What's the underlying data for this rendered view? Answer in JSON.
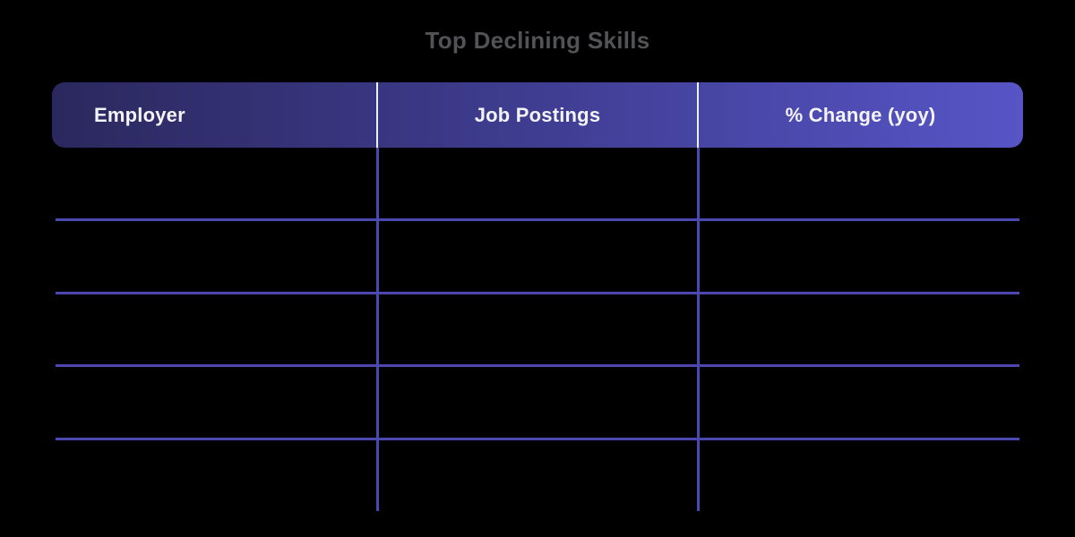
{
  "title": "Top Declining Skills",
  "table": {
    "columns": [
      {
        "label": "Employer",
        "align": "left"
      },
      {
        "label": "Job Postings",
        "align": "center"
      },
      {
        "label": "% Change (yoy)",
        "align": "center"
      }
    ],
    "rows": [
      {
        "employer": "",
        "job_postings": "",
        "pct_change_yoy": ""
      },
      {
        "employer": "",
        "job_postings": "",
        "pct_change_yoy": ""
      },
      {
        "employer": "",
        "job_postings": "",
        "pct_change_yoy": ""
      },
      {
        "employer": "",
        "job_postings": "",
        "pct_change_yoy": ""
      },
      {
        "employer": "",
        "job_postings": "",
        "pct_change_yoy": ""
      }
    ]
  },
  "chart_data": {
    "type": "table",
    "title": "Top Declining Skills",
    "columns": [
      "Employer",
      "Job Postings",
      "% Change (yoy)"
    ],
    "rows": [
      [
        "",
        "",
        ""
      ],
      [
        "",
        "",
        ""
      ],
      [
        "",
        "",
        ""
      ],
      [
        "",
        "",
        ""
      ],
      [
        "",
        "",
        ""
      ]
    ]
  },
  "theme": {
    "background": "#000000",
    "title_color": "#525356",
    "header_gradient_start": "#2b285e",
    "header_gradient_mid": "#403e93",
    "header_gradient_end": "#5755c6",
    "header_text_color": "#f3f3f8",
    "header_divider_color": "#eef0f8",
    "grid_line_color": "#4c48b2"
  }
}
